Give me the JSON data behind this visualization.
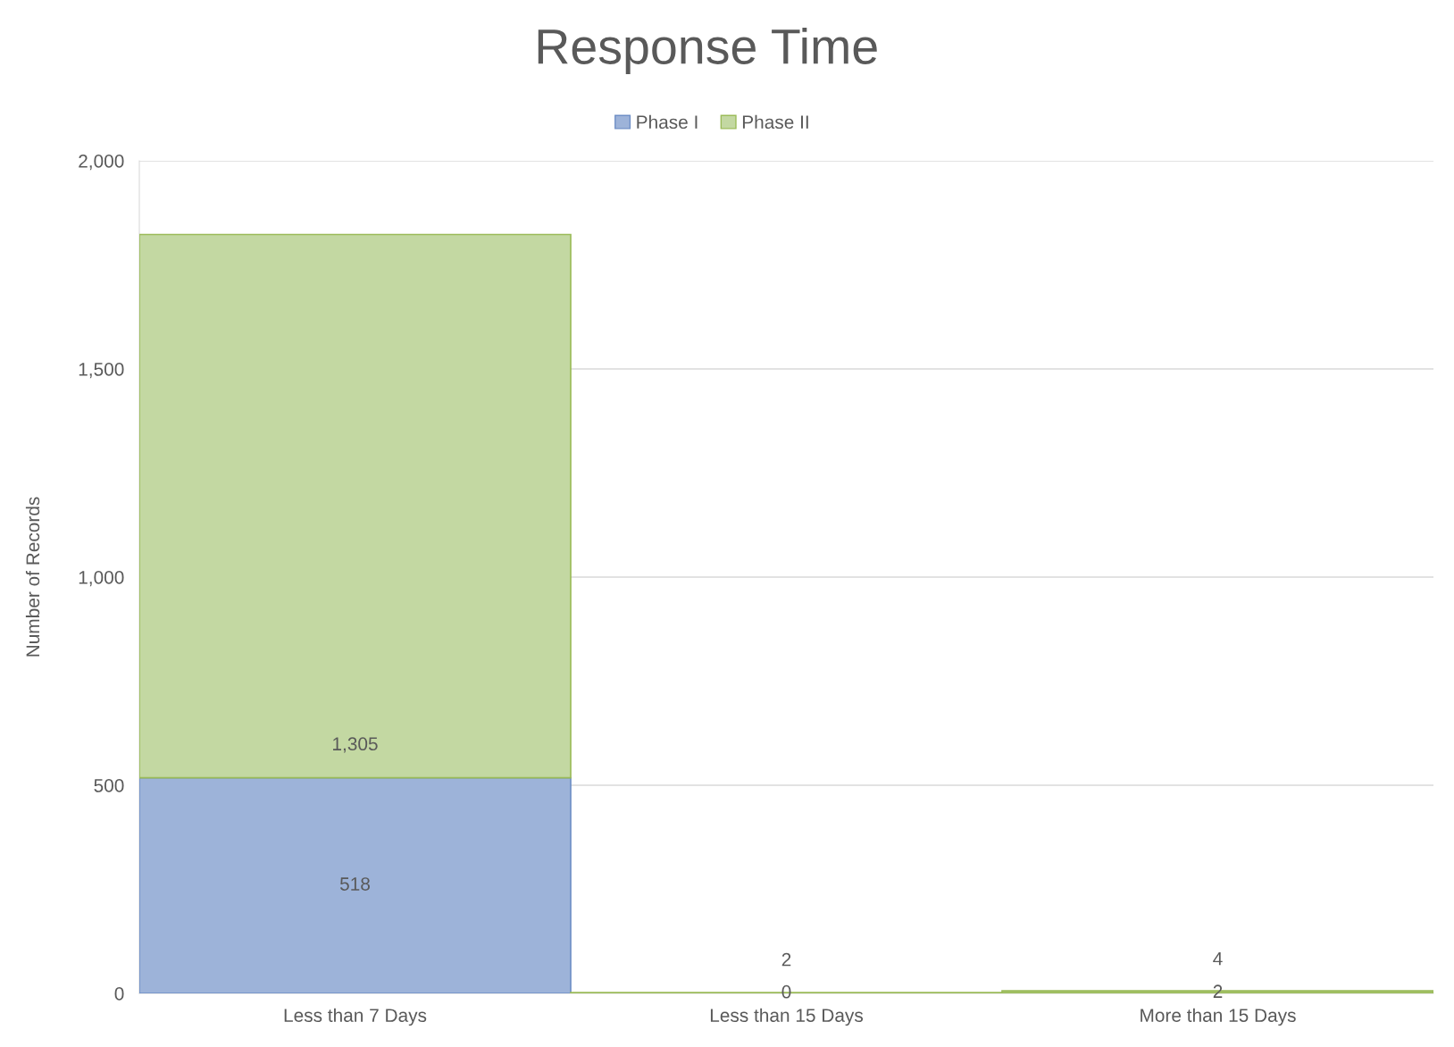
{
  "chart_data": {
    "type": "bar",
    "title": "Response Time",
    "ylabel": "Number of Records",
    "categories": [
      "Less than 7 Days",
      "Less than 15 Days",
      "More than 15 Days"
    ],
    "stacked": true,
    "series": [
      {
        "name": "Phase I",
        "color": "#9db3d9",
        "values": [
          518,
          0,
          2
        ],
        "value_labels": [
          "518",
          "0",
          "2"
        ]
      },
      {
        "name": "Phase II",
        "color": "#c3d8a2",
        "values": [
          1305,
          2,
          4
        ],
        "value_labels": [
          "1,305",
          "2",
          "4"
        ]
      }
    ],
    "ylim": [
      0,
      2000
    ],
    "yticks": [
      0,
      {
        "value": 500,
        "label": "500"
      },
      {
        "value": 1000,
        "label": "1,000"
      },
      {
        "value": 1500,
        "label": "1,500"
      },
      {
        "value": 2000,
        "label": "2,000"
      }
    ],
    "grid": "y",
    "legend": "top"
  }
}
